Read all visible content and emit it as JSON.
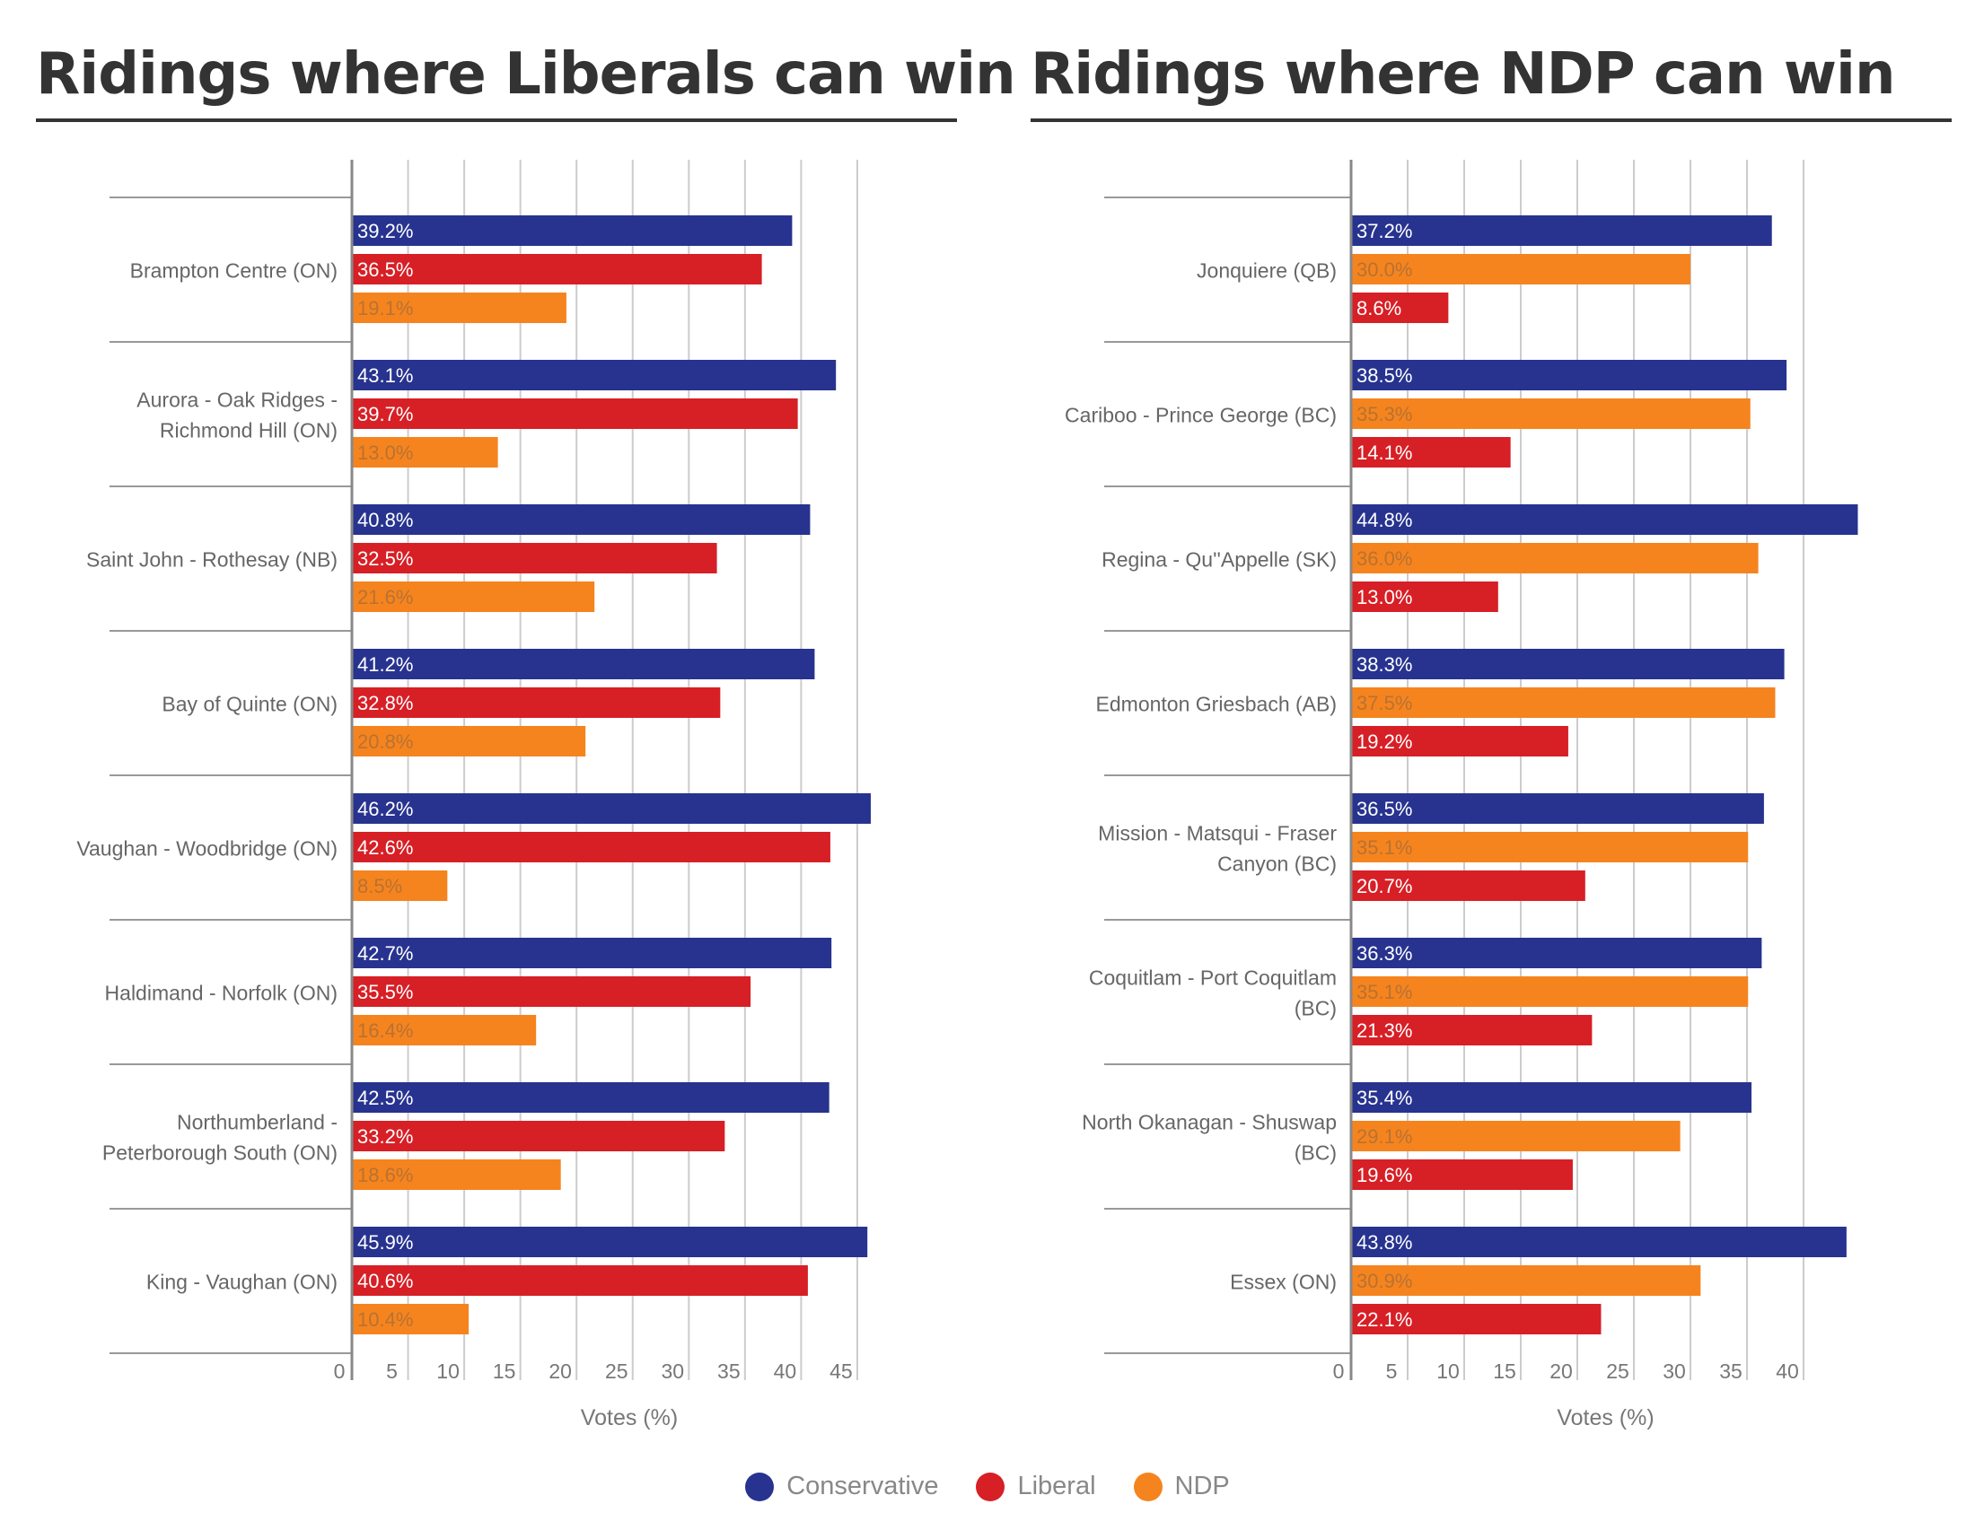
{
  "colors": {
    "Conservative": "#27338f",
    "Liberal": "#d71f26",
    "NDP": "#f5841f",
    "axis": "#888888",
    "grid": "#cccccc",
    "title": "#333333"
  },
  "legend": {
    "items": [
      {
        "label": "Conservative",
        "color": "#27338f"
      },
      {
        "label": "Liberal",
        "color": "#d71f26"
      },
      {
        "label": "NDP",
        "color": "#f5841f"
      }
    ]
  },
  "chart_data": [
    {
      "type": "bar",
      "orientation": "horizontal",
      "title": "Ridings where Liberals can win",
      "xlabel": "Votes (%)",
      "xlim": [
        0,
        47
      ],
      "x_ticks": [
        0,
        5,
        10,
        15,
        20,
        25,
        30,
        35,
        40,
        45
      ],
      "grid": true,
      "categories": [
        "Brampton Centre (ON)",
        "Aurora - Oak Ridges - Richmond Hill (ON)",
        "Saint John - Rothesay (NB)",
        "Bay of Quinte (ON)",
        "Vaughan - Woodbridge (ON)",
        "Haldimand - Norfolk (ON)",
        "Northumberland - Peterborough South (ON)",
        "King - Vaughan (ON)"
      ],
      "category_lines": [
        [
          "Brampton Centre (ON)"
        ],
        [
          "Aurora - Oak Ridges -",
          "Richmond Hill (ON)"
        ],
        [
          "Saint John - Rothesay (NB)"
        ],
        [
          "Bay of Quinte (ON)"
        ],
        [
          "Vaughan - Woodbridge (ON)"
        ],
        [
          "Haldimand - Norfolk (ON)"
        ],
        [
          "Northumberland -",
          "Peterborough South (ON)"
        ],
        [
          "King - Vaughan (ON)"
        ]
      ],
      "series": [
        {
          "name": "Conservative",
          "values": [
            39.2,
            43.1,
            40.8,
            41.2,
            46.2,
            42.7,
            42.5,
            45.9
          ],
          "labels": [
            "39.2%",
            "43.1%",
            "40.8%",
            "41.2%",
            "46.2%",
            "42.7%",
            "42.5%",
            "45.9%"
          ]
        },
        {
          "name": "Liberal",
          "values": [
            36.5,
            39.7,
            32.5,
            32.8,
            42.6,
            35.5,
            33.2,
            40.6
          ],
          "labels": [
            "36.5%",
            "39.7%",
            "32.5%",
            "32.8%",
            "42.6%",
            "35.5%",
            "33.2%",
            "40.6%"
          ]
        },
        {
          "name": "NDP",
          "values": [
            19.1,
            13.0,
            21.6,
            20.8,
            8.5,
            16.4,
            18.6,
            10.4
          ],
          "labels": [
            "19.1%",
            "13.0%",
            "21.6%",
            "20.8%",
            "8.5%",
            "16.4%",
            "18.6%",
            "10.4%"
          ]
        }
      ]
    },
    {
      "type": "bar",
      "orientation": "horizontal",
      "title": "Ridings where NDP can win",
      "xlabel": "Votes (%)",
      "xlim": [
        0,
        45
      ],
      "x_ticks": [
        0,
        5,
        10,
        15,
        20,
        25,
        30,
        35,
        40
      ],
      "grid": true,
      "categories": [
        "Jonquiere (QB)",
        "Cariboo - Prince George (BC)",
        "Regina - Qu''Appelle (SK)",
        "Edmonton Griesbach (AB)",
        "Mission - Matsqui - Fraser Canyon (BC)",
        "Coquitlam - Port Coquitlam (BC)",
        "North Okanagan - Shuswap (BC)",
        "Essex (ON)"
      ],
      "category_lines": [
        [
          "Jonquiere (QB)"
        ],
        [
          "Cariboo - Prince George (BC)"
        ],
        [
          "Regina - Qu''Appelle (SK)"
        ],
        [
          "Edmonton Griesbach (AB)"
        ],
        [
          "Mission - Matsqui - Fraser",
          "Canyon (BC)"
        ],
        [
          "Coquitlam - Port Coquitlam",
          "(BC)"
        ],
        [
          "North Okanagan - Shuswap",
          "(BC)"
        ],
        [
          "Essex (ON)"
        ]
      ],
      "series": [
        {
          "name": "Conservative",
          "values": [
            37.2,
            38.5,
            44.8,
            38.3,
            36.5,
            36.3,
            35.4,
            43.8
          ],
          "labels": [
            "37.2%",
            "38.5%",
            "44.8%",
            "38.3%",
            "36.5%",
            "36.3%",
            "35.4%",
            "43.8%"
          ]
        },
        {
          "name": "NDP",
          "values": [
            30.0,
            35.3,
            36.0,
            37.5,
            35.1,
            35.1,
            29.1,
            30.9
          ],
          "labels": [
            "30.0%",
            "35.3%",
            "36.0%",
            "37.5%",
            "35.1%",
            "35.1%",
            "29.1%",
            "30.9%"
          ]
        },
        {
          "name": "Liberal",
          "values": [
            8.6,
            14.1,
            13.0,
            19.2,
            20.7,
            21.3,
            19.6,
            22.1
          ],
          "labels": [
            "8.6%",
            "14.1%",
            "13.0%",
            "19.2%",
            "20.7%",
            "21.3%",
            "19.6%",
            "22.1%"
          ]
        }
      ]
    }
  ]
}
